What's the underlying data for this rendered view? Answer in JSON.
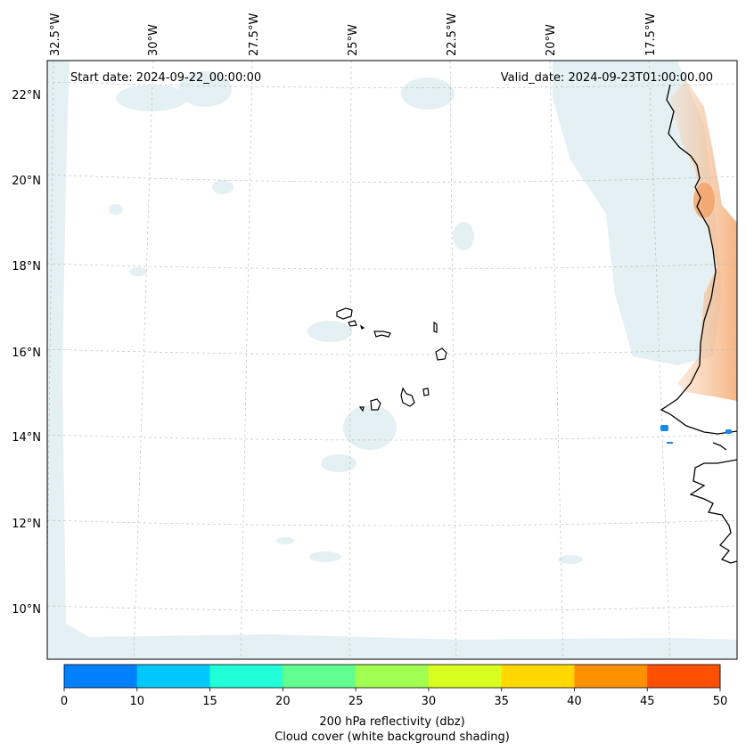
{
  "map": {
    "start_label": "Start date: 2024-09-22_00:00:00",
    "valid_label": "Valid_date: 2024-09-23T01:00:00.00",
    "lon_labels": [
      "32.5°W",
      "30°W",
      "27.5°W",
      "25°W",
      "22.5°W",
      "20°W",
      "17.5°W"
    ],
    "lat_labels": [
      "22°N",
      "20°N",
      "18°N",
      "16°N",
      "14°N",
      "12°N",
      "10°N"
    ]
  },
  "colorbar": {
    "ticks": [
      "0",
      "10",
      "15",
      "20",
      "25",
      "30",
      "35",
      "40",
      "45",
      "50"
    ],
    "colors": [
      "#0080ff",
      "#00c8ff",
      "#20ffd8",
      "#60ff90",
      "#a0ff50",
      "#d8ff20",
      "#ffd800",
      "#ff9000",
      "#ff5000"
    ],
    "label_line1": "200 hPa reflectivity (dbz)",
    "label_line2": "Cloud cover (white background shading)"
  },
  "colors": {
    "cloud": "#d6e8ee",
    "warm": "#f5b98a",
    "echo": "#1a88e8"
  }
}
